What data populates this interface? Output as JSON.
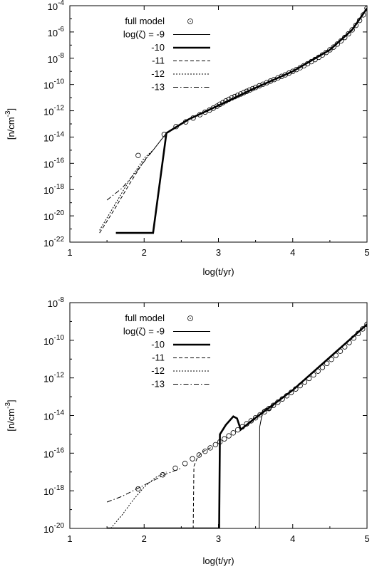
{
  "chart_data": [
    {
      "type": "line",
      "title": "",
      "xlabel": "log(t/yr)",
      "ylabel": "[n/cm^-3]",
      "ylabel_parts": {
        "base": "[n/cm",
        "exp": "-3",
        "close": "]"
      },
      "log_y": true,
      "xlim": [
        1,
        5
      ],
      "ylim_exp": [
        -22,
        -4
      ],
      "x_ticks": [
        "1",
        "2",
        "3",
        "4",
        "5"
      ],
      "y_tick_exps": [
        "-22",
        "-20",
        "-18",
        "-16",
        "-14",
        "-12",
        "-10",
        "-8",
        "-6",
        "-4"
      ],
      "legend": {
        "placement": "top-left",
        "header": "log(ζ) = ",
        "entries": [
          {
            "label": "full model",
            "style": "circle"
          },
          {
            "label": "log(ζ) = -9",
            "style": "thin"
          },
          {
            "label": "-10",
            "style": "thick"
          },
          {
            "label": "-11",
            "style": "dashed"
          },
          {
            "label": "-12",
            "style": "dotted"
          },
          {
            "label": "-13",
            "style": "dashdot"
          }
        ]
      },
      "series": [
        {
          "name": "full model",
          "style": "circle",
          "x": [
            1.92,
            2.27,
            2.43,
            2.56,
            2.66,
            2.75,
            2.82,
            2.88,
            2.93,
            2.98,
            3.02,
            3.06,
            3.1,
            3.14,
            3.18,
            3.22,
            3.26,
            3.3,
            3.34,
            3.38,
            3.42,
            3.46,
            3.5,
            3.55,
            3.6,
            3.65,
            3.7,
            3.75,
            3.8,
            3.85,
            3.9,
            3.95,
            4.0,
            4.05,
            4.1,
            4.15,
            4.2,
            4.25,
            4.3,
            4.35,
            4.4,
            4.45,
            4.5,
            4.55,
            4.6,
            4.65,
            4.7,
            4.75,
            4.8,
            4.85,
            4.9,
            4.95,
            5.0
          ],
          "y": [
            -15.4,
            -13.8,
            -13.2,
            -12.85,
            -12.55,
            -12.3,
            -12.1,
            -11.95,
            -11.8,
            -11.65,
            -11.5,
            -11.38,
            -11.25,
            -11.13,
            -11.02,
            -10.92,
            -10.82,
            -10.72,
            -10.62,
            -10.52,
            -10.42,
            -10.32,
            -10.22,
            -10.1,
            -9.98,
            -9.86,
            -9.74,
            -9.62,
            -9.5,
            -9.38,
            -9.26,
            -9.13,
            -9.0,
            -8.86,
            -8.72,
            -8.57,
            -8.42,
            -8.26,
            -8.1,
            -7.93,
            -7.75,
            -7.56,
            -7.36,
            -7.15,
            -6.92,
            -6.68,
            -6.42,
            -6.14,
            -5.84,
            -5.5,
            -5.12,
            -4.7,
            -4.2
          ]
        },
        {
          "name": "log(ζ) = -9",
          "style": "thin",
          "x": [
            2.12,
            2.3,
            2.6,
            3.0,
            3.5,
            4.0,
            4.5,
            4.8,
            5.0
          ],
          "y": [
            -15.0,
            -13.7,
            -12.65,
            -11.6,
            -10.25,
            -9.0,
            -7.36,
            -5.84,
            -4.2
          ]
        },
        {
          "name": "-10",
          "style": "thick",
          "x": [
            1.62,
            2.12,
            2.3,
            2.6,
            3.0,
            3.5,
            4.0,
            4.5,
            4.8,
            5.0
          ],
          "y": [
            -21.3,
            -21.3,
            -13.7,
            -12.65,
            -11.6,
            -10.25,
            -9.0,
            -7.36,
            -5.84,
            -4.2
          ]
        },
        {
          "name": "-11",
          "style": "dashed",
          "x": [
            1.4,
            1.6,
            1.8,
            2.0,
            2.12
          ],
          "y": [
            -21.3,
            -19.5,
            -17.6,
            -15.8,
            -15.0
          ]
        },
        {
          "name": "-12",
          "style": "dotted",
          "x": [
            1.4,
            1.6,
            1.8,
            2.0,
            2.12
          ],
          "y": [
            -21.1,
            -19.2,
            -17.3,
            -15.6,
            -15.0
          ]
        },
        {
          "name": "-13",
          "style": "dashdot",
          "x": [
            1.5,
            1.7,
            1.9,
            2.05,
            2.12
          ],
          "y": [
            -18.8,
            -17.9,
            -16.6,
            -15.5,
            -15.0
          ]
        }
      ]
    },
    {
      "type": "line",
      "title": "",
      "xlabel": "log(t/yr)",
      "ylabel": "[n/cm^-3]",
      "ylabel_parts": {
        "base": "[n/cm",
        "exp": "-3",
        "close": "]"
      },
      "log_y": true,
      "xlim": [
        1,
        5
      ],
      "ylim_exp": [
        -20,
        -8
      ],
      "x_ticks": [
        "1",
        "2",
        "3",
        "4",
        "5"
      ],
      "y_tick_exps": [
        "-20",
        "-18",
        "-16",
        "-14",
        "-12",
        "-10",
        "-8"
      ],
      "legend": {
        "placement": "top-left",
        "entries": [
          {
            "label": "full model",
            "style": "circle"
          },
          {
            "label": "log(ζ) = -9",
            "style": "thin"
          },
          {
            "label": "-10",
            "style": "thick"
          },
          {
            "label": "-11",
            "style": "dashed"
          },
          {
            "label": "-12",
            "style": "dotted"
          },
          {
            "label": "-13",
            "style": "dashdot"
          }
        ]
      },
      "series": [
        {
          "name": "full model",
          "style": "circle",
          "x": [
            1.92,
            2.25,
            2.42,
            2.55,
            2.65,
            2.74,
            2.82,
            2.89,
            2.96,
            3.02,
            3.08,
            3.14,
            3.2,
            3.26,
            3.32,
            3.38,
            3.44,
            3.5,
            3.56,
            3.62,
            3.68,
            3.74,
            3.8,
            3.86,
            3.92,
            3.98,
            4.04,
            4.1,
            4.16,
            4.22,
            4.28,
            4.34,
            4.4,
            4.46,
            4.52,
            4.58,
            4.64,
            4.7,
            4.76,
            4.82,
            4.88,
            4.94,
            5.0
          ],
          "y": [
            -17.9,
            -17.15,
            -16.8,
            -16.55,
            -16.3,
            -16.1,
            -15.9,
            -15.72,
            -15.55,
            -15.4,
            -15.24,
            -15.08,
            -14.92,
            -14.76,
            -14.6,
            -14.44,
            -14.28,
            -14.12,
            -13.96,
            -13.8,
            -13.63,
            -13.46,
            -13.29,
            -13.12,
            -12.95,
            -12.77,
            -12.59,
            -12.41,
            -12.22,
            -12.03,
            -11.84,
            -11.64,
            -11.44,
            -11.23,
            -11.02,
            -10.8,
            -10.58,
            -10.35,
            -10.12,
            -9.88,
            -9.64,
            -9.4,
            -9.15
          ]
        },
        {
          "name": "log(ζ) = -9",
          "style": "thin",
          "x": [
            1.5,
            3.55,
            3.555,
            3.6,
            3.65,
            3.68,
            3.75,
            4.0,
            4.5,
            5.0
          ],
          "y": [
            -20.0,
            -20.0,
            -14.6,
            -13.7,
            -13.6,
            -13.75,
            -13.42,
            -12.65,
            -10.9,
            -9.15
          ]
        },
        {
          "name": "-10",
          "style": "thick",
          "x": [
            1.5,
            3.01,
            3.02,
            3.1,
            3.2,
            3.25,
            3.3,
            3.5,
            4.0,
            4.5,
            5.0
          ],
          "y": [
            -20.0,
            -20.0,
            -15.0,
            -14.5,
            -14.05,
            -14.15,
            -14.75,
            -14.12,
            -12.65,
            -10.9,
            -9.15
          ]
        },
        {
          "name": "-11",
          "style": "dashed",
          "x": [
            1.5,
            2.66,
            2.67,
            2.72,
            2.8,
            2.9
          ],
          "y": [
            -20.0,
            -20.0,
            -16.7,
            -16.2,
            -15.9,
            -15.7
          ]
        },
        {
          "name": "-12",
          "style": "dotted",
          "x": [
            1.55,
            1.7,
            1.85,
            2.0,
            2.15,
            2.3
          ],
          "y": [
            -20.0,
            -19.3,
            -18.5,
            -17.8,
            -17.3,
            -17.0
          ]
        },
        {
          "name": "-13",
          "style": "dashdot",
          "x": [
            1.5,
            1.7,
            1.9,
            2.1,
            2.3,
            2.5
          ],
          "y": [
            -18.6,
            -18.3,
            -17.9,
            -17.5,
            -17.1,
            -16.8
          ]
        }
      ]
    }
  ]
}
